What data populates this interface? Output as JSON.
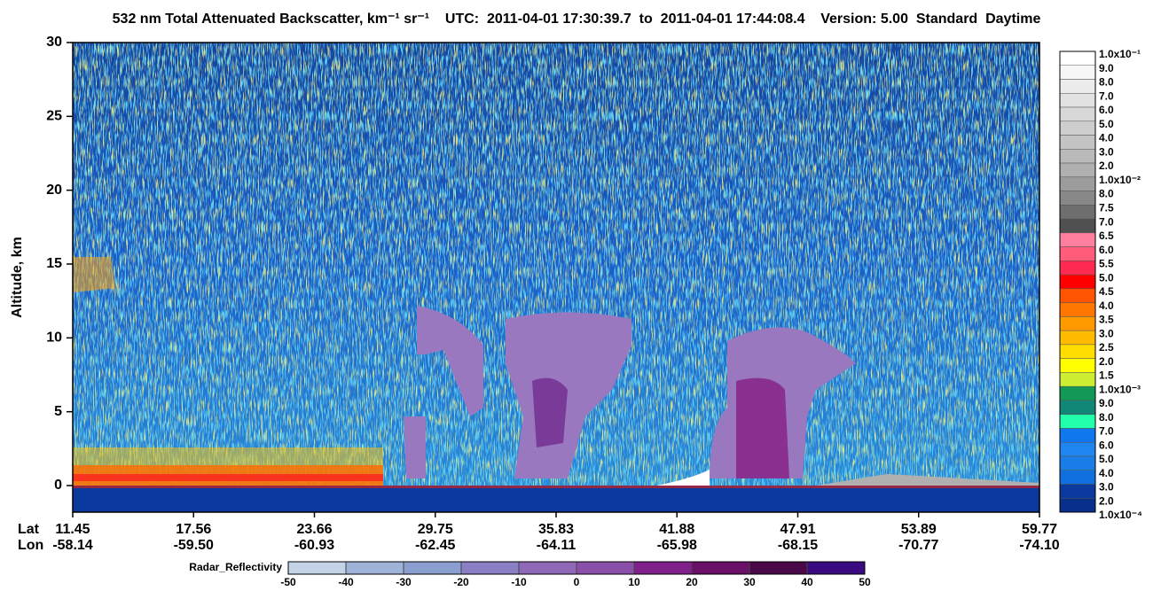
{
  "chart_data": {
    "type": "curtain",
    "title": "532 nm Total Attenuated Backscatter, km⁻¹ sr⁻¹    UTC:  2011-04-01 17:30:39.7  to  2011-04-01 17:44:08.4    Version: 5.00  Standard  Daytime",
    "y_label": "Altitude, km",
    "ylim": [
      -1.8,
      30
    ],
    "yticks": [
      0,
      5,
      10,
      15,
      20,
      25,
      30
    ],
    "x_rows": [
      {
        "name": "Lat",
        "labels": [
          "11.45",
          "17.56",
          "23.66",
          "29.75",
          "35.83",
          "41.88",
          "47.91",
          "53.89",
          "59.77"
        ]
      },
      {
        "name": "Lon",
        "labels": [
          "-58.14",
          "-59.50",
          "-60.93",
          "-62.45",
          "-64.11",
          "-65.98",
          "-68.15",
          "-70.77",
          "-74.10"
        ]
      }
    ],
    "colorbar": {
      "labels": [
        "1.0x10⁻¹",
        "9.0",
        "8.0",
        "7.0",
        "6.0",
        "5.0",
        "4.0",
        "3.0",
        "2.0",
        "1.0x10⁻²",
        "8.0",
        "7.5",
        "7.0",
        "6.5",
        "6.0",
        "5.5",
        "5.0",
        "4.5",
        "4.0",
        "3.5",
        "3.0",
        "2.5",
        "2.0",
        "1.5",
        "1.0x10⁻³",
        "9.0",
        "8.0",
        "7.0",
        "6.0",
        "5.0",
        "4.0",
        "3.0",
        "2.0",
        "1.0x10⁻⁴"
      ],
      "colors": [
        "#ffffff",
        "#f6f6f6",
        "#ececec",
        "#e2e2e2",
        "#d8d8d8",
        "#cecece",
        "#c4c4c4",
        "#bababa",
        "#b0b0b0",
        "#9c9c9c",
        "#888888",
        "#6e6e6e",
        "#505050",
        "#ff7f9f",
        "#ff5c7a",
        "#ff2a50",
        "#ff0000",
        "#ff5500",
        "#ff7700",
        "#ff9900",
        "#ffbb00",
        "#ffdd00",
        "#ffff00",
        "#ccee33",
        "#119955",
        "#118877",
        "#22ffaa",
        "#1177ee",
        "#1f85f0",
        "#1a7ee8",
        "#1070e0",
        "#0a3a9e",
        "#08308a"
      ]
    },
    "radar": {
      "name": "Radar_Reflectivity",
      "ticks": [
        -50,
        -40,
        -30,
        -20,
        -10,
        0,
        10,
        20,
        30,
        40,
        50
      ],
      "colors": [
        "#c5d3e6",
        "#9fb3d8",
        "#8a9fd0",
        "#8a7fc4",
        "#9068b8",
        "#8a4fa8",
        "#80208a",
        "#6a1068",
        "#4a0848",
        "#3a0a80"
      ]
    }
  }
}
